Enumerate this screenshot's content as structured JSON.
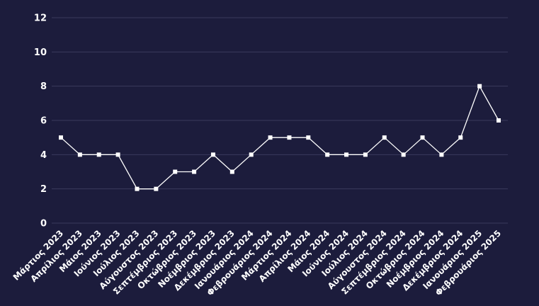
{
  "colors": {
    "background": "#1c1c3c",
    "gridline": "#3a3a5c",
    "line": "#ffffff",
    "text": "#ffffff"
  },
  "chart_data": {
    "type": "line",
    "title": "",
    "xlabel": "",
    "ylabel": "",
    "ylim": [
      0,
      12
    ],
    "yticks": [
      0,
      2,
      4,
      6,
      8,
      10,
      12
    ],
    "grid": true,
    "legend": "none",
    "marker": "square",
    "categories": [
      "Μάρτιος 2023",
      "Απρίλιος 2023",
      "Μάιος 2023",
      "Ιούνιος 2023",
      "Ιούλιος 2023",
      "Αύγουστος 2023",
      "Σεπτέμβριος 2023",
      "Οκτώβριος 2023",
      "Νοέμβριος 2023",
      "Δεκέμβριος 2023",
      "Ιανουάριος 2024",
      "Φεβρουάριος 2024",
      "Μάρτιος 2024",
      "Απρίλιος 2024",
      "Μάιος 2024",
      "Ιούνιος 2024",
      "Ιούλιος 2024",
      "Αύγουστος 2024",
      "Σεπτέμβριος 2024",
      "Οκτώβριος 2024",
      "Νοέμβριος 2024",
      "Δεκέμβριος 2024",
      "Ιανουάριος 2025",
      "Φεβρουάριος 2025"
    ],
    "series": [
      {
        "values": [
          5,
          4,
          4,
          4,
          2,
          2,
          3,
          3,
          4,
          3,
          4,
          5,
          5,
          5,
          4,
          4,
          4,
          5,
          4,
          5,
          4,
          5,
          8,
          6
        ]
      }
    ]
  }
}
